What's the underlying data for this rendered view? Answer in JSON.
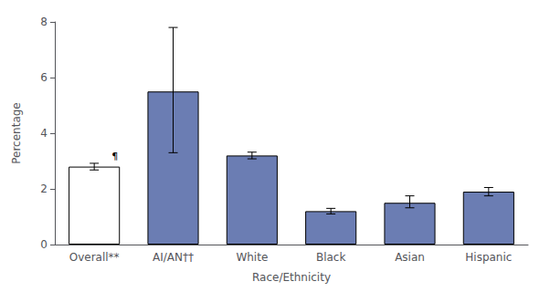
{
  "chart_data": {
    "type": "bar",
    "categories": [
      "Overall**",
      "AI/AN††",
      "White",
      "Black",
      "Asian",
      "Hispanic"
    ],
    "values": [
      2.8,
      5.5,
      3.2,
      1.2,
      1.5,
      1.9
    ],
    "error_lower": [
      0.12,
      2.2,
      0.12,
      0.1,
      0.18,
      0.15
    ],
    "error_upper": [
      0.12,
      2.3,
      0.12,
      0.1,
      0.25,
      0.15
    ],
    "colors": [
      "white",
      "#6b7db3",
      "#6b7db3",
      "#6b7db3",
      "#6b7db3",
      "#6b7db3"
    ],
    "xlabel": "Race/Ethnicity",
    "ylabel": "Percentage",
    "ylim": [
      0,
      8
    ],
    "yticks": [
      0,
      2,
      4,
      6,
      8
    ],
    "grid": false,
    "annotations": [
      {
        "text": "¶",
        "category": "Overall**"
      }
    ]
  }
}
